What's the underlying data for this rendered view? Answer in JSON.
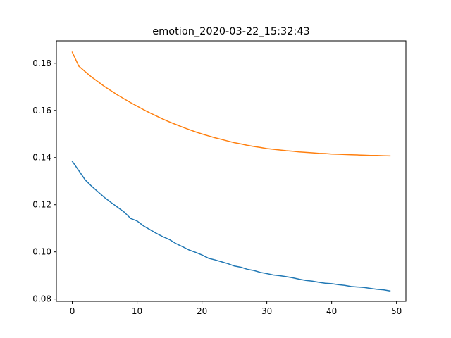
{
  "chart_data": {
    "type": "line",
    "title": "emotion_2020-03-22_15:32:43",
    "xlabel": "",
    "ylabel": "",
    "xlim": [
      -2.45,
      51.45
    ],
    "ylim": [
      0.079,
      0.1895
    ],
    "xticks": [
      0,
      10,
      20,
      30,
      40,
      50
    ],
    "xtick_labels": [
      "0",
      "10",
      "20",
      "30",
      "40",
      "50"
    ],
    "yticks": [
      0.08,
      0.1,
      0.12,
      0.14,
      0.16,
      0.18
    ],
    "ytick_labels": [
      "0.08",
      "0.10",
      "0.12",
      "0.14",
      "0.16",
      "0.18"
    ],
    "grid": false,
    "legend": "none",
    "x": [
      0,
      1,
      2,
      3,
      4,
      5,
      6,
      7,
      8,
      9,
      10,
      11,
      12,
      13,
      14,
      15,
      16,
      17,
      18,
      19,
      20,
      21,
      22,
      23,
      24,
      25,
      26,
      27,
      28,
      29,
      30,
      31,
      32,
      33,
      34,
      35,
      36,
      37,
      38,
      39,
      40,
      41,
      42,
      43,
      44,
      45,
      46,
      47,
      48,
      49
    ],
    "series": [
      {
        "color": "#1f77b4",
        "values": [
          0.1384,
          0.1345,
          0.1305,
          0.1278,
          0.1254,
          0.123,
          0.1209,
          0.1189,
          0.1169,
          0.1142,
          0.1131,
          0.111,
          0.1094,
          0.1078,
          0.1064,
          0.1052,
          0.1035,
          0.1022,
          0.1008,
          0.0998,
          0.0987,
          0.0973,
          0.0966,
          0.0958,
          0.095,
          0.094,
          0.0935,
          0.0926,
          0.0921,
          0.0913,
          0.0908,
          0.0902,
          0.0899,
          0.0895,
          0.089,
          0.0884,
          0.0879,
          0.0876,
          0.0871,
          0.0867,
          0.0865,
          0.0861,
          0.0858,
          0.0853,
          0.0851,
          0.0849,
          0.0845,
          0.0841,
          0.0839,
          0.0834
        ]
      },
      {
        "color": "#ff7f0e",
        "values": [
          0.1847,
          0.1788,
          0.1764,
          0.1741,
          0.1721,
          0.1701,
          0.1683,
          0.1665,
          0.1649,
          0.1633,
          0.1618,
          0.1603,
          0.1589,
          0.1576,
          0.1563,
          0.1551,
          0.154,
          0.1529,
          0.1519,
          0.1509,
          0.15,
          0.1492,
          0.1484,
          0.1477,
          0.147,
          0.1463,
          0.1458,
          0.1452,
          0.1447,
          0.1443,
          0.1438,
          0.1435,
          0.1432,
          0.1429,
          0.1427,
          0.1424,
          0.1422,
          0.142,
          0.1418,
          0.1417,
          0.1415,
          0.1414,
          0.1413,
          0.1412,
          0.1411,
          0.141,
          0.1409,
          0.1409,
          0.1408,
          0.1407
        ]
      }
    ]
  }
}
